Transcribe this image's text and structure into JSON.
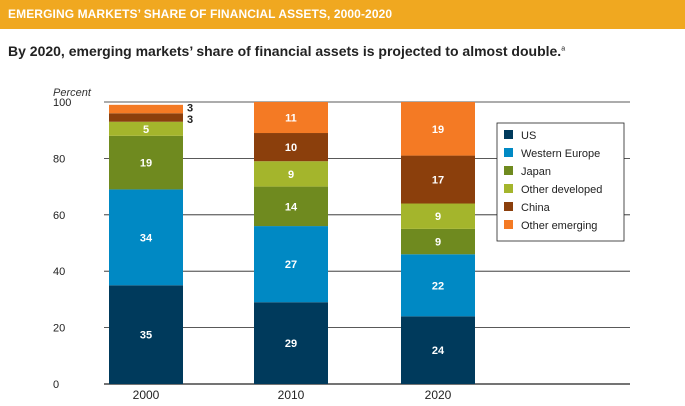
{
  "banner": {
    "title": "EMERGING MARKETS’ SHARE OF FINANCIAL ASSETS, 2000-2020"
  },
  "subtitle": {
    "text": "By 2020, emerging markets’ share of financial assets is projected to almost double.",
    "footnote": "a"
  },
  "chart_data": {
    "type": "bar",
    "stacked": true,
    "ylabel": "Percent",
    "ylim": [
      0,
      100
    ],
    "yticks": [
      0,
      20,
      40,
      60,
      80,
      100
    ],
    "categories": [
      "2000",
      "2010",
      "2020"
    ],
    "series": [
      {
        "name": "US",
        "color": "#003a5c",
        "values": [
          35,
          29,
          24
        ]
      },
      {
        "name": "Western Europe",
        "color": "#0089c4",
        "values": [
          34,
          27,
          22
        ]
      },
      {
        "name": "Japan",
        "color": "#6f8a1f",
        "values": [
          19,
          14,
          9
        ]
      },
      {
        "name": "Other developed",
        "color": "#a4b52c",
        "values": [
          5,
          9,
          9
        ]
      },
      {
        "name": "China",
        "color": "#8b3f0c",
        "values": [
          3,
          10,
          17
        ]
      },
      {
        "name": "Other emerging",
        "color": "#f47a24",
        "values": [
          3,
          11,
          19
        ]
      }
    ],
    "legend_position": "right"
  }
}
